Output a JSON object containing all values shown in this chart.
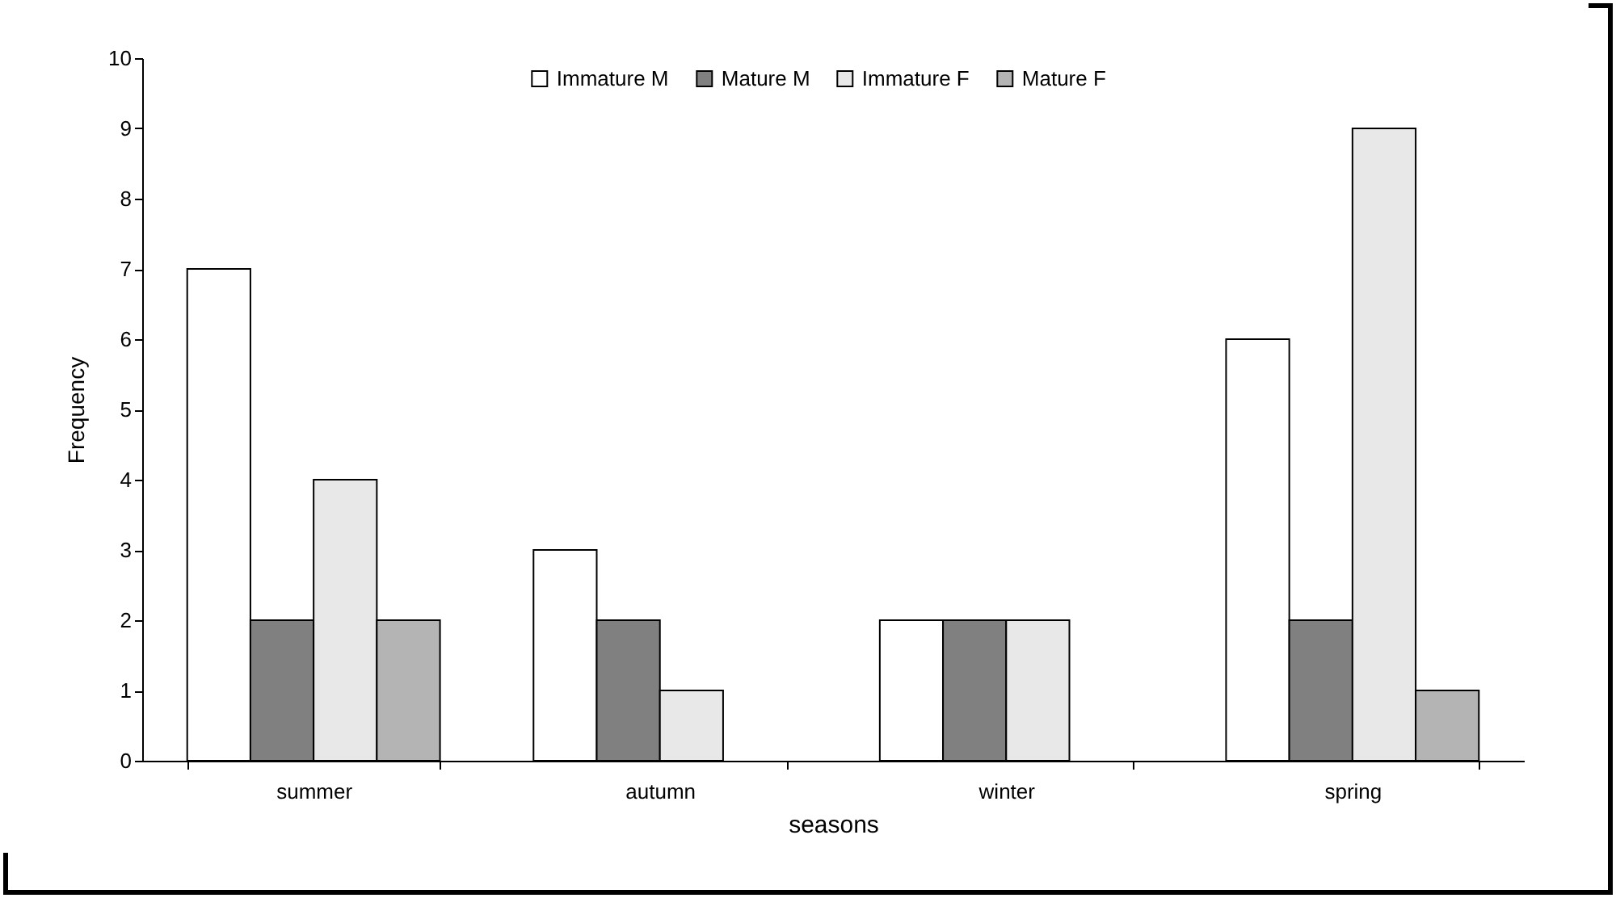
{
  "chart_data": {
    "type": "bar",
    "xlabel": "seasons",
    "ylabel": "Frequency",
    "categories": [
      "summer",
      "autumn",
      "winter",
      "spring"
    ],
    "series": [
      {
        "name": "Immature M",
        "color": "#ffffff",
        "values": [
          7,
          3,
          2,
          6
        ]
      },
      {
        "name": "Mature M",
        "color": "#808080",
        "values": [
          2,
          2,
          2,
          2
        ]
      },
      {
        "name": "Immature F",
        "color": "#e8e8e8",
        "values": [
          4,
          1,
          2,
          9
        ]
      },
      {
        "name": "Mature F",
        "color": "#b4b4b4",
        "values": [
          2,
          null,
          null,
          1
        ]
      }
    ],
    "ylim": [
      0,
      10
    ],
    "yticks": [
      0,
      1,
      2,
      3,
      4,
      5,
      6,
      7,
      8,
      9,
      10
    ],
    "grid": false,
    "legend": "top"
  }
}
